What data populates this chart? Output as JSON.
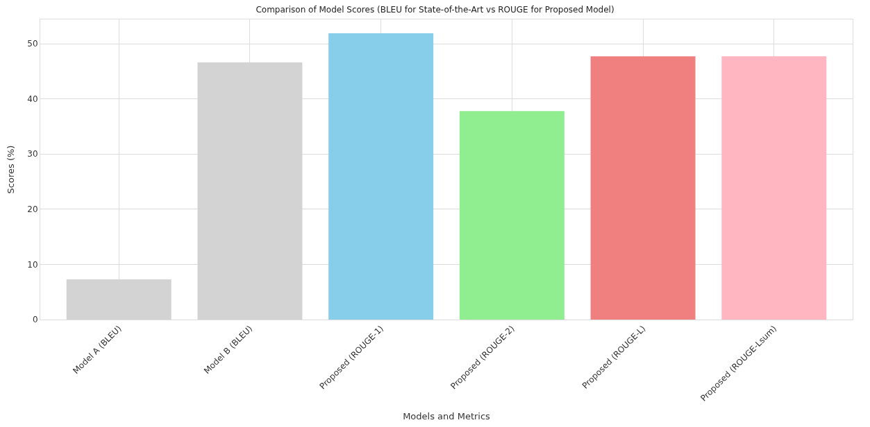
{
  "chart_data": {
    "type": "bar",
    "title": "Comparison of Model Scores (BLEU for State-of-the-Art vs ROUGE for Proposed Model)",
    "xlabel": "Models and Metrics",
    "ylabel": "Scores (%)",
    "categories": [
      "Model A (BLEU)",
      "Model B (BLEU)",
      "Proposed (ROUGE-1)",
      "Proposed (ROUGE-2)",
      "Proposed (ROUGE-L)",
      "Proposed (ROUGE-Lsum)"
    ],
    "values": [
      7.3,
      46.6,
      51.9,
      37.8,
      47.7,
      47.7
    ],
    "colors": [
      "#d3d3d3",
      "#d3d3d3",
      "#87ceeb",
      "#90ee90",
      "#f08080",
      "#ffb6c1"
    ],
    "ylim": [
      0,
      54.4
    ],
    "yticks": [
      0,
      10,
      20,
      30,
      40,
      50
    ],
    "grid": true
  }
}
